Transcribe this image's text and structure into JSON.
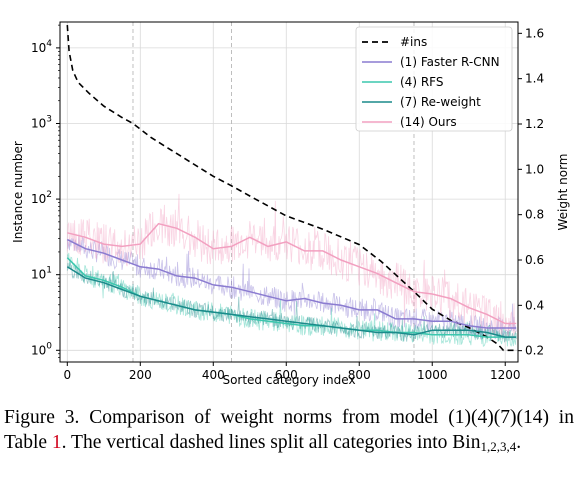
{
  "chart_data": {
    "type": "line",
    "xlabel": "Sorted category index",
    "ylabel_left": "Instance number",
    "ylabel_right": "Weight norm",
    "xlim": [
      -20,
      1235
    ],
    "x_ticks": [
      0,
      200,
      400,
      600,
      800,
      1000,
      1200
    ],
    "ylim_left": [
      0.7,
      22000
    ],
    "yscale_left": "log",
    "y_ticks_left": [
      1,
      10,
      100,
      1000,
      10000
    ],
    "y_tick_labels_left": [
      "10^0",
      "10^1",
      "10^2",
      "10^3",
      "10^4"
    ],
    "ylim_right": [
      0.15,
      1.65
    ],
    "y_ticks_right": [
      0.2,
      0.4,
      0.6,
      0.8,
      1.0,
      1.2,
      1.4,
      1.6
    ],
    "y_tick_labels_right": [
      "0.2",
      "0.4",
      "0.6",
      "0.8",
      "1.0",
      "1.2",
      "1.4",
      "1.6"
    ],
    "bin_split_lines_x": [
      180,
      450,
      950
    ],
    "grid": true,
    "legend_placement": "top-right",
    "series": [
      {
        "name": "#ins",
        "axis": "left",
        "color": "#000000",
        "style": "dashed",
        "x": [
          0,
          5,
          15,
          30,
          60,
          100,
          150,
          180,
          230,
          300,
          400,
          450,
          500,
          600,
          700,
          800,
          860,
          900,
          950,
          1000,
          1050,
          1100,
          1150,
          1180,
          1195,
          1230
        ],
        "y": [
          20000,
          9000,
          5000,
          3500,
          2500,
          1700,
          1200,
          1000,
          650,
          400,
          200,
          150,
          110,
          60,
          40,
          25,
          15,
          10,
          6,
          3.5,
          2.5,
          2,
          1.5,
          1.2,
          1,
          1
        ]
      },
      {
        "name": "(1) Faster R-CNN",
        "axis": "right",
        "color": "#8a7bd0",
        "style": "solid",
        "x": [
          0,
          50,
          100,
          150,
          200,
          250,
          300,
          350,
          400,
          450,
          500,
          550,
          600,
          650,
          700,
          750,
          800,
          850,
          900,
          950,
          1000,
          1050,
          1100,
          1150,
          1200,
          1230
        ],
        "y": [
          0.69,
          0.65,
          0.63,
          0.6,
          0.57,
          0.56,
          0.53,
          0.52,
          0.49,
          0.48,
          0.46,
          0.44,
          0.42,
          0.43,
          0.41,
          0.4,
          0.38,
          0.38,
          0.34,
          0.34,
          0.33,
          0.33,
          0.31,
          0.3,
          0.3,
          0.3
        ]
      },
      {
        "name": "(4) RFS",
        "axis": "right",
        "color": "#3cc7ae",
        "style": "solid",
        "x": [
          0,
          50,
          100,
          150,
          200,
          250,
          300,
          350,
          400,
          450,
          500,
          550,
          600,
          650,
          700,
          750,
          800,
          850,
          900,
          950,
          1000,
          1050,
          1100,
          1150,
          1200,
          1230
        ],
        "y": [
          0.61,
          0.53,
          0.51,
          0.48,
          0.44,
          0.42,
          0.4,
          0.38,
          0.37,
          0.36,
          0.34,
          0.33,
          0.32,
          0.31,
          0.31,
          0.3,
          0.29,
          0.29,
          0.28,
          0.28,
          0.27,
          0.27,
          0.27,
          0.26,
          0.26,
          0.26
        ]
      },
      {
        "name": "(7) Re-weight",
        "axis": "right",
        "color": "#1a8a8a",
        "style": "solid",
        "x": [
          0,
          50,
          100,
          150,
          200,
          250,
          300,
          350,
          400,
          450,
          500,
          550,
          600,
          650,
          700,
          750,
          800,
          850,
          900,
          950,
          1000,
          1050,
          1100,
          1150,
          1200,
          1230
        ],
        "y": [
          0.57,
          0.52,
          0.5,
          0.47,
          0.44,
          0.42,
          0.4,
          0.38,
          0.37,
          0.36,
          0.35,
          0.34,
          0.33,
          0.32,
          0.31,
          0.3,
          0.29,
          0.28,
          0.28,
          0.27,
          0.29,
          0.29,
          0.29,
          0.28,
          0.26,
          0.26
        ]
      },
      {
        "name": "(14) Ours",
        "axis": "right",
        "color": "#f2a0c0",
        "style": "solid",
        "x": [
          0,
          50,
          100,
          150,
          200,
          250,
          300,
          350,
          400,
          450,
          500,
          550,
          600,
          650,
          700,
          750,
          800,
          850,
          900,
          950,
          1000,
          1050,
          1100,
          1150,
          1200,
          1230
        ],
        "y": [
          0.72,
          0.7,
          0.67,
          0.66,
          0.67,
          0.76,
          0.74,
          0.7,
          0.65,
          0.66,
          0.7,
          0.66,
          0.68,
          0.64,
          0.64,
          0.6,
          0.57,
          0.54,
          0.5,
          0.46,
          0.45,
          0.43,
          0.39,
          0.36,
          0.32,
          0.32
        ]
      }
    ]
  },
  "caption": {
    "label": "Figure 3.",
    "text_before_ref": " Comparison of weight norms from model (1)(4)(7)(14) in Table ",
    "ref": "1",
    "text_after_ref": ".  The vertical dashed lines split all categories into ",
    "bin_word": "Bin",
    "bin_sub": "1,2,3,4",
    "end": "."
  }
}
